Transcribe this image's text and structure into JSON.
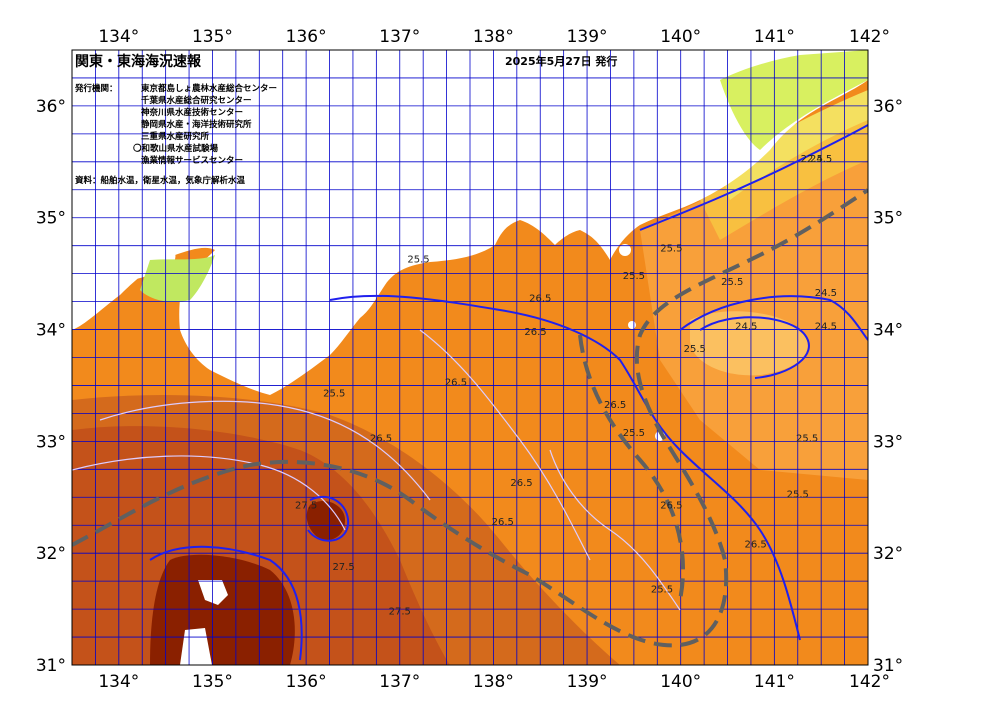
{
  "map": {
    "title": "関東・東海海況速報",
    "issue_date": "2025年5月27日 発行",
    "issuer_label": "発行機関：",
    "issuers": [
      "東京都島しょ農林水産総合センター",
      "千葉県水産総合研究センター",
      "神奈川県水産技術センター",
      "静岡県水産・海洋技術研究所",
      "三重県水産研究所",
      "和歌山県水産試験場",
      "漁業情報サービスセンター"
    ],
    "source": "資料：船舶水温，衛星水温，気象庁解析水温",
    "lon_ticks": [
      "134°",
      "135°",
      "136°",
      "137°",
      "138°",
      "139°",
      "140°",
      "141°",
      "142°"
    ],
    "lat_ticks": [
      "36°",
      "35°",
      "34°",
      "33°",
      "32°",
      "31°"
    ],
    "lon_range": [
      133.5,
      142
    ],
    "lat_range": [
      31,
      36.5
    ],
    "contour_labels": [
      {
        "text": "25.5",
        "lon": 137.2,
        "lat": 34.6
      },
      {
        "text": "26.5",
        "lon": 138.5,
        "lat": 34.25
      },
      {
        "text": "26.5",
        "lon": 138.45,
        "lat": 33.95
      },
      {
        "text": "25.5",
        "lon": 136.3,
        "lat": 33.4
      },
      {
        "text": "26.5",
        "lon": 136.8,
        "lat": 33.0
      },
      {
        "text": "26.5",
        "lon": 137.6,
        "lat": 33.5
      },
      {
        "text": "27.5",
        "lon": 136.0,
        "lat": 32.4
      },
      {
        "text": "27.5",
        "lon": 136.4,
        "lat": 31.85
      },
      {
        "text": "27.5",
        "lon": 137.0,
        "lat": 31.45
      },
      {
        "text": "26.5",
        "lon": 138.3,
        "lat": 32.6
      },
      {
        "text": "26.5",
        "lon": 138.1,
        "lat": 32.25
      },
      {
        "text": "25.5",
        "lon": 139.5,
        "lat": 33.05
      },
      {
        "text": "26.5",
        "lon": 139.3,
        "lat": 33.3
      },
      {
        "text": "25.5",
        "lon": 140.15,
        "lat": 33.8
      },
      {
        "text": "25.5",
        "lon": 140.55,
        "lat": 34.4
      },
      {
        "text": "24.5",
        "lon": 140.7,
        "lat": 34.0
      },
      {
        "text": "24.5",
        "lon": 141.55,
        "lat": 34.0
      },
      {
        "text": "24.5",
        "lon": 141.55,
        "lat": 34.3
      },
      {
        "text": "25.5",
        "lon": 141.35,
        "lat": 33.0
      },
      {
        "text": "25.5",
        "lon": 141.25,
        "lat": 32.5
      },
      {
        "text": "26.5",
        "lon": 140.8,
        "lat": 32.05
      },
      {
        "text": "25.5",
        "lon": 139.8,
        "lat": 31.65
      },
      {
        "text": "26.5",
        "lon": 139.9,
        "lat": 32.4
      },
      {
        "text": "24.5",
        "lon": 141.5,
        "lat": 35.5
      },
      {
        "text": "22.5",
        "lon": 141.4,
        "lat": 35.5
      },
      {
        "text": "25.5",
        "lon": 139.5,
        "lat": 34.45
      },
      {
        "text": "25.5",
        "lon": 139.9,
        "lat": 34.7
      }
    ],
    "colors": {
      "land": "#ffffff",
      "ocean_warm": "#f28a1c",
      "ocean_mid": "#e0701a",
      "ocean_hot": "#c0501a",
      "ocean_vhot": "#8a2000",
      "ocean_cool": "#f8a940",
      "coastal_cold": "#f4e060",
      "coastal_colder": "#88ee70",
      "grid": "#0000cc",
      "kuroshio": "#666666"
    }
  }
}
